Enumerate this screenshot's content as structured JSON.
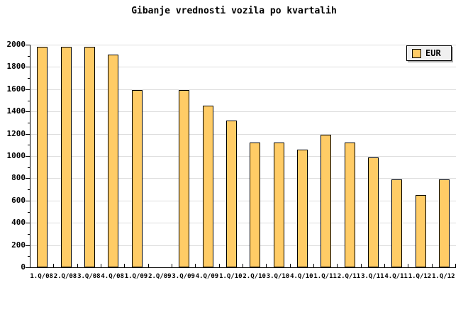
{
  "title": "Gibanje vrednosti vozila po kvartalih",
  "legend": {
    "label": "EUR",
    "position": "top-right"
  },
  "colors": {
    "bar_fill": "#FFCC66",
    "bar_border": "#000000",
    "gridline": "#DDDDDD",
    "axis": "#000000",
    "background": "#FFFFFF",
    "legend_background": "#F0F0F0",
    "legend_shadow": "#AAAAAA"
  },
  "chart_data": {
    "type": "bar",
    "title": "Gibanje vrednosti vozila po kvartalih",
    "xlabel": "",
    "ylabel": "",
    "categories": [
      "1.Q/08",
      "2.Q/08",
      "3.Q/08",
      "4.Q/08",
      "1.Q/09",
      "2.Q/09",
      "3.Q/09",
      "4.Q/09",
      "1.Q/10",
      "2.Q/10",
      "3.Q/10",
      "4.Q/10",
      "1.Q/11",
      "2.Q/11",
      "3.Q/11",
      "4.Q/11",
      "1.Q/12",
      "1.Q/12"
    ],
    "series": [
      {
        "name": "EUR",
        "values": [
          1980,
          1980,
          1980,
          1910,
          1590,
          0,
          1590,
          1450,
          1320,
          1120,
          1120,
          1060,
          1190,
          1120,
          990,
          790,
          650,
          790
        ]
      }
    ],
    "note": "2.Q/09 has no bar (value 0 / missing)",
    "ylim": [
      0,
      2000
    ],
    "ytick_values": [
      0,
      200,
      400,
      600,
      800,
      1000,
      1200,
      1400,
      1600,
      1800,
      2000
    ],
    "ytick_step": 200,
    "minor_ytick_step": 100,
    "grid": true,
    "legend_position": "top-right"
  }
}
